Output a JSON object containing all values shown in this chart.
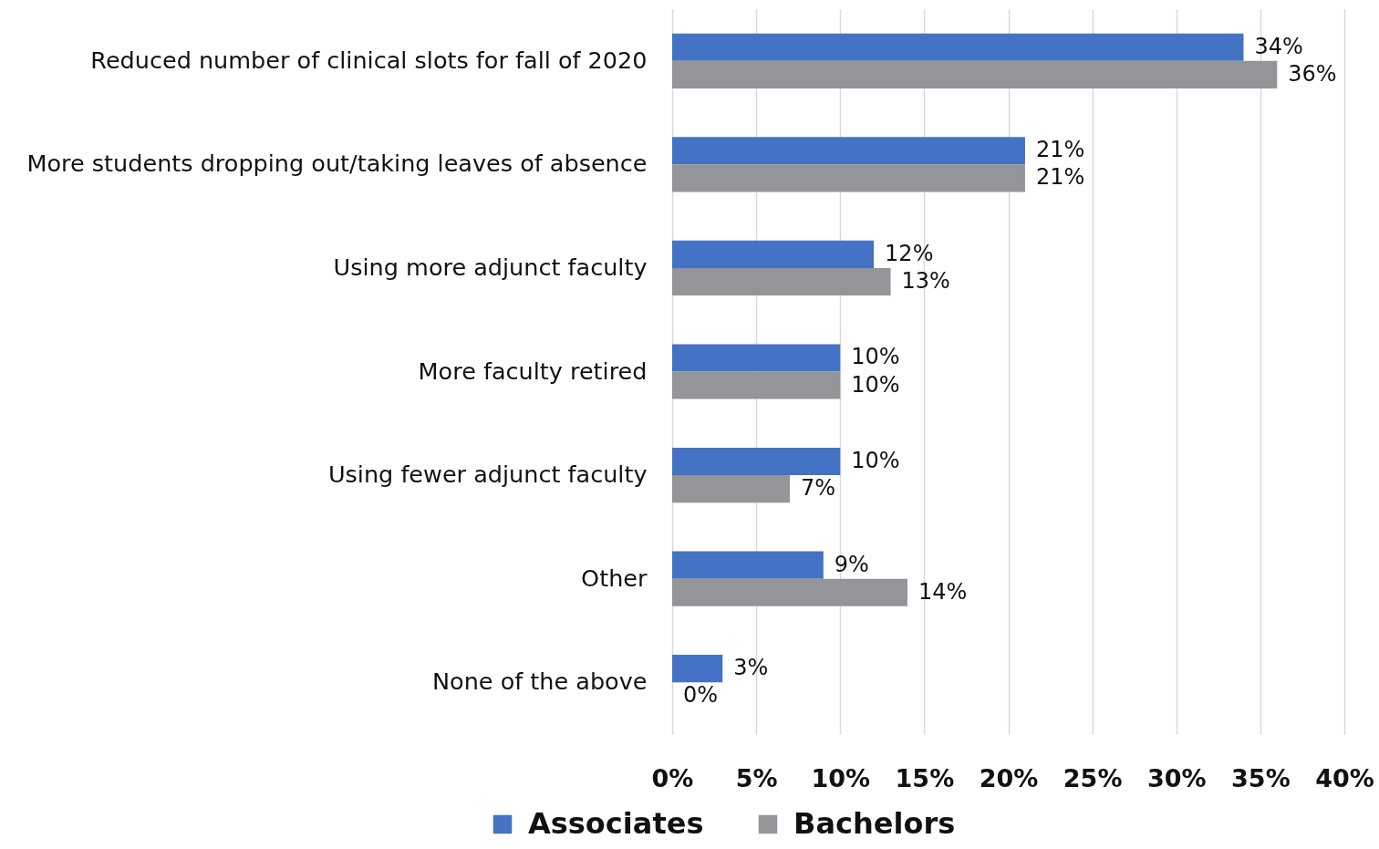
{
  "chart_data": {
    "type": "bar",
    "orientation": "horizontal",
    "categories": [
      "Reduced number of clinical slots for fall of 2020",
      "More students dropping out/taking leaves of absence",
      "Using more adjunct faculty",
      "More faculty retired",
      "Using fewer adjunct faculty",
      "Other",
      "None of the above"
    ],
    "series": [
      {
        "name": "Associates",
        "color": "#4472c4",
        "values": [
          34,
          21,
          12,
          10,
          10,
          9,
          3
        ],
        "value_labels": [
          "34%",
          "21%",
          "12%",
          "10%",
          "10%",
          "9%",
          "3%"
        ]
      },
      {
        "name": "Bachelors",
        "color": "#939598",
        "values": [
          36,
          21,
          13,
          10,
          7,
          14,
          0
        ],
        "value_labels": [
          "36%",
          "21%",
          "13%",
          "10%",
          "7%",
          "14%",
          "0%"
        ]
      }
    ],
    "xlim": [
      0,
      40
    ],
    "xticks": [
      {
        "value": 0,
        "label": "0%"
      },
      {
        "value": 5,
        "label": "5%"
      },
      {
        "value": 10,
        "label": "10%"
      },
      {
        "value": 15,
        "label": "15%"
      },
      {
        "value": 20,
        "label": "20%"
      },
      {
        "value": 25,
        "label": "25%"
      },
      {
        "value": 30,
        "label": "30%"
      },
      {
        "value": 35,
        "label": "35%"
      },
      {
        "value": 40,
        "label": "40%"
      }
    ],
    "grid": "x",
    "legend": "bottom"
  }
}
